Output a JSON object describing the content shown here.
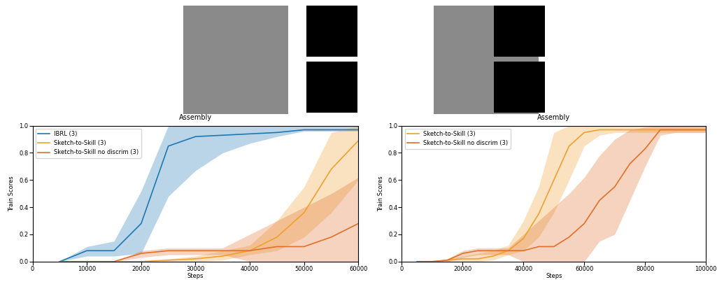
{
  "chart_data": [
    {
      "type": "line",
      "title": "Assembly",
      "x_label": "Steps",
      "y_label": "Train Scores",
      "xlim": [
        0,
        60000
      ],
      "xticks": [
        0,
        10000,
        20000,
        30000,
        40000,
        50000,
        60000
      ],
      "ylim": [
        0,
        1
      ],
      "yticks": [
        {
          "value": 0,
          "label": "0.0"
        },
        {
          "value": 0.2,
          "label": "0.2"
        },
        {
          "value": 0.4,
          "label": "0.4"
        },
        {
          "value": 0.6,
          "label": "0.6"
        },
        {
          "value": 0.8,
          "label": "0.8"
        },
        {
          "value": 1,
          "label": "1.0"
        }
      ],
      "grid": false,
      "legend": "upper left",
      "x": [
        5000,
        10000,
        15000,
        20000,
        25000,
        30000,
        35000,
        40000,
        45000,
        50000,
        55000,
        60000
      ],
      "series": [
        {
          "name": "IBRL (3)",
          "color": "#1f77b4",
          "values": [
            0,
            0.08,
            0.08,
            0.28,
            0.85,
            0.92,
            0.93,
            0.94,
            0.95,
            0.97,
            0.97,
            0.97
          ],
          "lower": [
            0,
            0.04,
            0.04,
            0.06,
            0.48,
            0.67,
            0.8,
            0.87,
            0.92,
            0.96,
            0.96,
            0.96
          ],
          "upper": [
            0,
            0.11,
            0.15,
            0.52,
            1.0,
            1.0,
            1.0,
            1.0,
            1.0,
            1.0,
            1.0,
            1.0
          ]
        },
        {
          "name": "Sketch-to-Skill (3)",
          "color": "#f0a030",
          "values": [
            0,
            0,
            0,
            0,
            0.01,
            0.02,
            0.04,
            0.08,
            0.18,
            0.36,
            0.68,
            0.89
          ],
          "lower": [
            0,
            0,
            0,
            0,
            0,
            0,
            0.01,
            0.05,
            0.08,
            0.18,
            0.36,
            0.6
          ],
          "upper": [
            0,
            0,
            0,
            0,
            0.02,
            0.04,
            0.08,
            0.12,
            0.3,
            0.55,
            0.95,
            1.0
          ]
        },
        {
          "name": "Sketch-to-Skill no discrim (3)",
          "color": "#e0702a",
          "values": [
            0,
            0,
            0,
            0.06,
            0.08,
            0.08,
            0.08,
            0.08,
            0.11,
            0.11,
            0.18,
            0.28
          ],
          "lower": [
            0,
            0,
            0,
            0.03,
            0.05,
            0.05,
            0.05,
            0,
            0,
            0,
            0,
            0
          ],
          "upper": [
            0,
            0,
            0,
            0.08,
            0.1,
            0.1,
            0.1,
            0.2,
            0.3,
            0.4,
            0.5,
            0.62
          ]
        }
      ]
    },
    {
      "type": "line",
      "title": "Assembly",
      "x_label": "Steps",
      "y_label": "Train Scores",
      "xlim": [
        0,
        100000
      ],
      "xticks": [
        0,
        20000,
        40000,
        60000,
        80000,
        100000
      ],
      "ylim": [
        0,
        1
      ],
      "yticks": [
        {
          "value": 0,
          "label": "0.0"
        },
        {
          "value": 0.2,
          "label": "0.2"
        },
        {
          "value": 0.4,
          "label": "0.4"
        },
        {
          "value": 0.6,
          "label": "0.6"
        },
        {
          "value": 0.8,
          "label": "0.8"
        },
        {
          "value": 1,
          "label": "1.0"
        }
      ],
      "grid": false,
      "legend": "upper left",
      "x": [
        5000,
        10000,
        15000,
        20000,
        25000,
        30000,
        35000,
        40000,
        45000,
        50000,
        55000,
        60000,
        65000,
        70000,
        75000,
        80000,
        85000,
        90000,
        95000,
        100000
      ],
      "series": [
        {
          "name": "Sketch-to-Skill (3)",
          "color": "#f0a030",
          "values": [
            0,
            0,
            0.01,
            0.02,
            0.02,
            0.04,
            0.08,
            0.17,
            0.35,
            0.6,
            0.85,
            0.95,
            0.97,
            0.97,
            0.97,
            0.97,
            0.97,
            0.97,
            0.97,
            0.97
          ],
          "lower": [
            0,
            0,
            0,
            0,
            0,
            0.01,
            0.05,
            0.08,
            0.18,
            0.36,
            0.6,
            0.85,
            0.93,
            0.95,
            0.95,
            0.95,
            0.95,
            0.95,
            0.95,
            0.95
          ],
          "upper": [
            0,
            0,
            0.02,
            0.04,
            0.06,
            0.08,
            0.12,
            0.3,
            0.55,
            0.95,
            1.0,
            1.0,
            1.0,
            1.0,
            1.0,
            1.0,
            1.0,
            1.0,
            1.0,
            1.0
          ]
        },
        {
          "name": "Sketch-to-Skill no discrim (3)",
          "color": "#e0702a",
          "values": [
            0,
            0,
            0.01,
            0.06,
            0.08,
            0.08,
            0.08,
            0.08,
            0.11,
            0.11,
            0.18,
            0.28,
            0.45,
            0.55,
            0.72,
            0.83,
            0.97,
            0.97,
            0.97,
            0.97
          ],
          "lower": [
            0,
            0,
            0,
            0.03,
            0.05,
            0.05,
            0.05,
            0,
            0,
            0,
            0,
            0,
            0.15,
            0.2,
            0.45,
            0.7,
            0.93,
            0.95,
            0.95,
            0.95
          ],
          "upper": [
            0,
            0,
            0.02,
            0.08,
            0.1,
            0.1,
            0.1,
            0.2,
            0.3,
            0.4,
            0.5,
            0.62,
            0.78,
            0.9,
            0.97,
            0.99,
            1.0,
            1.0,
            1.0,
            1.0
          ]
        }
      ]
    }
  ]
}
